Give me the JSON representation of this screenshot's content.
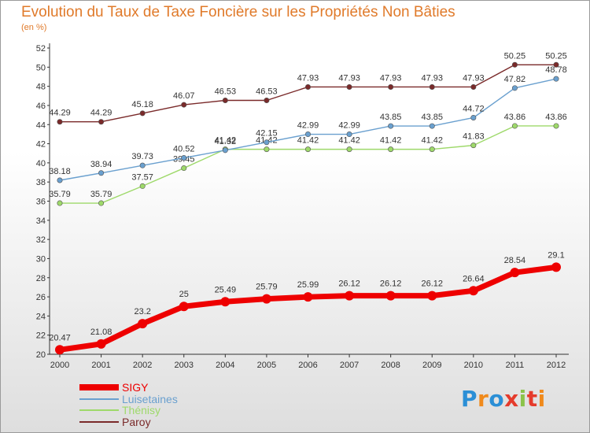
{
  "header": {
    "title": "Evolution du Taux de Taxe Foncière sur les Propriétés Non Bâties",
    "subtitle": "(en %)"
  },
  "logo": {
    "text": "Proxiti",
    "letter_colors": [
      "#2b8fd6",
      "#f08a1c",
      "#2b8fd6",
      "#e53b2c",
      "#8bc34a",
      "#e53b2c",
      "#f08a1c"
    ]
  },
  "chart_data": {
    "type": "line",
    "title": "Evolution du Taux de Taxe Foncière sur les Propriétés Non Bâties",
    "ylabel": "(en %)",
    "x": [
      2000,
      2001,
      2002,
      2003,
      2004,
      2005,
      2006,
      2007,
      2008,
      2009,
      2010,
      2011,
      2012
    ],
    "ylim": [
      20,
      52
    ],
    "yticks": [
      20,
      22,
      24,
      26,
      28,
      30,
      32,
      34,
      36,
      38,
      40,
      42,
      44,
      46,
      48,
      50,
      52
    ],
    "grid": false,
    "legend_position": "bottom-left",
    "series": [
      {
        "name": "SIGY",
        "color": "#ee0000",
        "values": [
          20.47,
          21.08,
          23.2,
          25,
          25.49,
          25.79,
          25.99,
          26.12,
          26.12,
          26.12,
          26.64,
          28.54,
          29.1
        ],
        "labels": [
          "20.47",
          "21.08",
          "23.2",
          "25",
          "25.49",
          "25.79",
          "25.99",
          "26.12",
          "26.12",
          "26.12",
          "26.64",
          "28.54",
          "29.1"
        ]
      },
      {
        "name": "Luisetaines",
        "color": "#6aa0cf",
        "values": [
          38.18,
          38.94,
          39.73,
          40.52,
          41.32,
          42.15,
          42.99,
          42.99,
          43.85,
          43.85,
          44.72,
          47.82,
          48.78
        ],
        "labels": [
          "38.18",
          "38.94",
          "39.73",
          "40.52",
          "41.32",
          "42.15",
          "42.99",
          "42.99",
          "43.85",
          "43.85",
          "44.72",
          "47.82",
          "48.78"
        ]
      },
      {
        "name": "Thénisy",
        "color": "#9ed96a",
        "values": [
          35.79,
          35.79,
          37.57,
          39.45,
          41.42,
          41.42,
          41.42,
          41.42,
          41.42,
          41.42,
          41.83,
          43.86,
          43.86
        ],
        "labels": [
          "35.79",
          "35.79",
          "37.57",
          "39.45",
          "41.42",
          "41.42",
          "41.42",
          "41.42",
          "41.42",
          "41.42",
          "41.83",
          "43.86",
          "43.86"
        ]
      },
      {
        "name": "Paroy",
        "color": "#7a2a2a",
        "values": [
          44.29,
          44.29,
          45.18,
          46.07,
          46.53,
          46.53,
          47.93,
          47.93,
          47.93,
          47.93,
          47.93,
          50.25,
          50.25
        ],
        "labels": [
          "44.29",
          "44.29",
          "45.18",
          "46.07",
          "46.53",
          "46.53",
          "47.93",
          "47.93",
          "47.93",
          "47.93",
          "47.93",
          "50.25",
          "50.25"
        ]
      }
    ]
  }
}
